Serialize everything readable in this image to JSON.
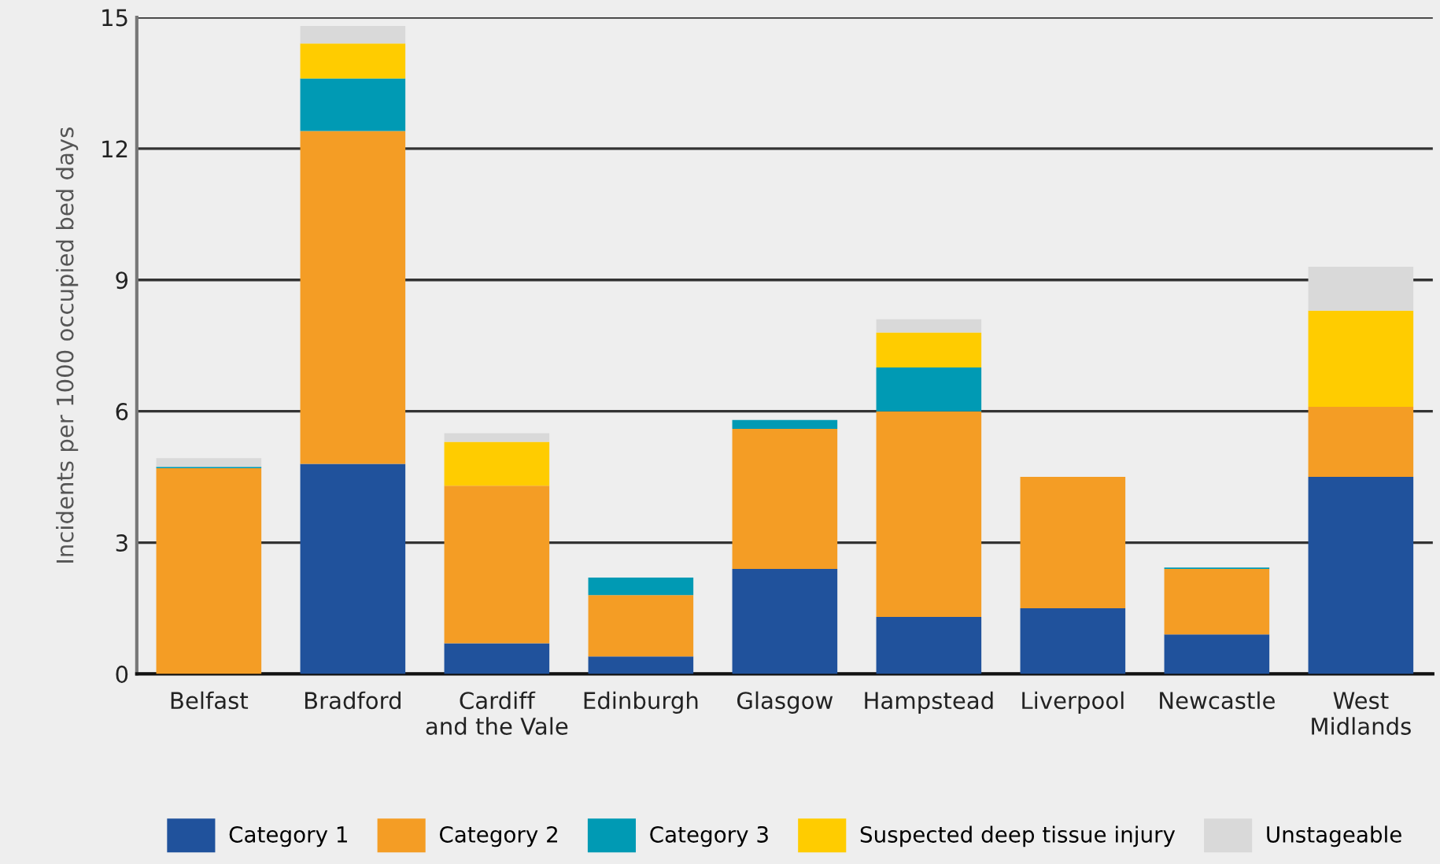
{
  "chart_data": {
    "type": "bar",
    "stacked": true,
    "ylabel": "Incidents per 1000 occupied bed days",
    "categories": [
      "Belfast",
      "Bradford",
      "Cardiff\nand the Vale",
      "Edinburgh",
      "Glasgow",
      "Hampstead",
      "Liverpool",
      "Newcastle",
      "West\nMidlands"
    ],
    "series": [
      {
        "name": "Category 1",
        "color": "#20529c",
        "values": [
          0,
          4.8,
          0.7,
          0.4,
          2.4,
          1.3,
          1.5,
          0.9,
          4.5
        ]
      },
      {
        "name": "Category 2",
        "color": "#f49d25",
        "values": [
          4.7,
          7.6,
          3.6,
          1.4,
          3.2,
          4.7,
          3.0,
          1.5,
          1.6
        ]
      },
      {
        "name": "Category 3",
        "color": "#009ab4",
        "values": [
          0.03,
          1.2,
          0,
          0.4,
          0.2,
          1.0,
          0,
          0.03,
          0
        ]
      },
      {
        "name": "Suspected deep tissue injury",
        "color": "#ffcc00",
        "values": [
          0,
          0.8,
          1.0,
          0,
          0,
          0.8,
          0,
          0,
          2.2
        ]
      },
      {
        "name": "Unstageable",
        "color": "#d9d9d9",
        "values": [
          0.2,
          0.4,
          0.2,
          0,
          0,
          0.3,
          0,
          0,
          1.0
        ]
      }
    ],
    "ylim": [
      0,
      15
    ],
    "yticks": [
      0,
      3,
      6,
      9,
      12,
      15
    ],
    "grid": "y",
    "legend": "bottom"
  }
}
